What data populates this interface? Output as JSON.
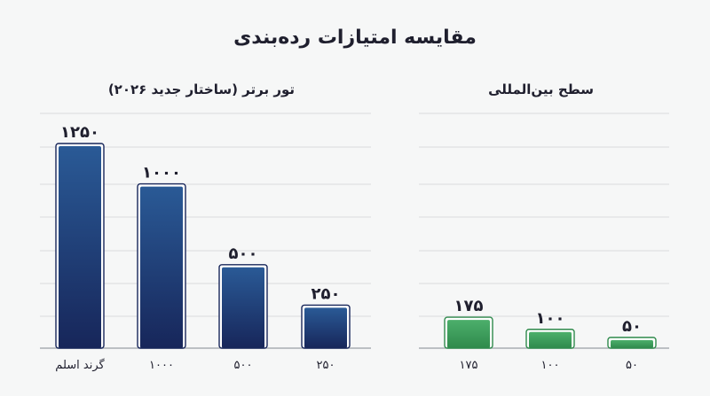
{
  "title": "مقایسه امتیازات رده‌بندی",
  "colors": {
    "background": "#f6f7f7",
    "grid": "#d9dbdd",
    "bar_blue_top": "#2a5a96",
    "bar_blue_bottom": "#17265a",
    "bar_green_top": "#4caf6b",
    "bar_green_bottom": "#2f8a4c",
    "text": "#1f1f2e"
  },
  "chart_data": [
    {
      "type": "bar",
      "title": "تور برتر (ساختار جدید ۲۰۲۶)",
      "categories": [
        "گرند اسلم",
        "۱۰۰۰",
        "۵۰۰",
        "۲۵۰"
      ],
      "values": [
        1250,
        1000,
        500,
        250
      ],
      "value_labels": [
        "۱۲۵۰",
        "۱۰۰۰",
        "۵۰۰",
        "۲۵۰"
      ],
      "ylim": [
        0,
        1250
      ],
      "grid": true
    },
    {
      "type": "bar",
      "title": "سطح بین‌المللی",
      "categories": [
        "۱۷۵",
        "۱۰۰",
        "۵۰"
      ],
      "values": [
        175,
        100,
        50
      ],
      "value_labels": [
        "۱۷۵",
        "۱۰۰",
        "۵۰"
      ],
      "ylim": [
        0,
        1250
      ],
      "grid": true
    }
  ]
}
